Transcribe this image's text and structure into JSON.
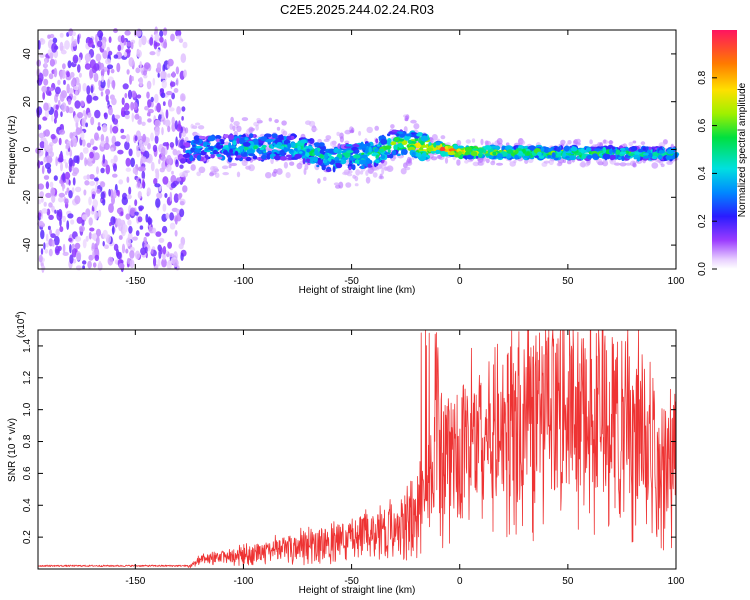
{
  "figure_title": "C2E5.2025.244.02.24.R03",
  "colors": {
    "snr_line": "#ee3333",
    "frame": "#000000"
  },
  "chart_data": [
    {
      "type": "heatmap",
      "name": "spectrogram",
      "xlabel": "Height of straight line (km)",
      "ylabel": "Frequency (Hz)",
      "xlim": [
        -195,
        100
      ],
      "ylim": [
        -50,
        50
      ],
      "x_ticks": [
        -150,
        -100,
        -50,
        0,
        50,
        100
      ],
      "x_tick_labels": [
        "-150",
        "-100",
        "-50",
        "0",
        "50",
        "100"
      ],
      "y_ticks": [
        -40,
        -20,
        0,
        20,
        40
      ],
      "y_tick_labels": [
        "-40",
        "-20",
        "0",
        "20",
        "40"
      ],
      "colorbar": {
        "label": "Normalized spectral amplitude",
        "range": [
          0,
          1
        ],
        "ticks": [
          0.0,
          0.2,
          0.4,
          0.6,
          0.8
        ],
        "tick_labels": [
          "0.0",
          "0.2",
          "0.4",
          "0.6",
          "0.8"
        ]
      },
      "ridge": {
        "x": [
          -125,
          -100,
          -75,
          -60,
          -50,
          -40,
          -30,
          -20,
          -10,
          0,
          25,
          50,
          75,
          100
        ],
        "freq": [
          0,
          1,
          1,
          -4,
          -3,
          -2,
          3,
          1.5,
          0.5,
          -1,
          -1.2,
          -1.4,
          -1.6,
          -1.8
        ],
        "amplitude": [
          0.3,
          0.4,
          0.45,
          0.4,
          0.45,
          0.5,
          0.55,
          0.7,
          0.85,
          0.8,
          0.6,
          0.55,
          0.5,
          0.45
        ]
      }
    },
    {
      "type": "line",
      "name": "snr",
      "xlabel": "Height of straight line (km)",
      "ylabel": "SNR (10 * v/v)",
      "multiplier_label": "(x10",
      "multiplier_exp": "4",
      "multiplier_close": ")",
      "xlim": [
        -195,
        100
      ],
      "ylim": [
        0,
        1.5
      ],
      "x_ticks": [
        -150,
        -100,
        -50,
        0,
        50,
        100
      ],
      "x_tick_labels": [
        "-150",
        "-100",
        "-50",
        "0",
        "50",
        "100"
      ],
      "y_ticks": [
        0.2,
        0.4,
        0.6,
        0.8,
        1.0,
        1.2,
        1.4
      ],
      "y_tick_labels": [
        "0.2",
        "0.4",
        "0.6",
        "0.8",
        "1.0",
        "1.2",
        "1.4"
      ],
      "envelope": {
        "x": [
          -195,
          -125,
          -120,
          -100,
          -80,
          -60,
          -40,
          -30,
          -25,
          -20,
          -15,
          -12,
          -10,
          -5,
          0,
          10,
          20,
          30,
          40,
          50,
          60,
          70,
          80,
          85,
          90,
          95,
          100
        ],
        "y": [
          0.02,
          0.02,
          0.06,
          0.1,
          0.15,
          0.2,
          0.25,
          0.3,
          0.35,
          0.4,
          0.55,
          0.75,
          0.85,
          0.8,
          0.85,
          0.95,
          1.0,
          1.05,
          1.1,
          1.12,
          1.13,
          1.1,
          1.05,
          0.95,
          0.8,
          0.75,
          0.85
        ]
      }
    }
  ]
}
